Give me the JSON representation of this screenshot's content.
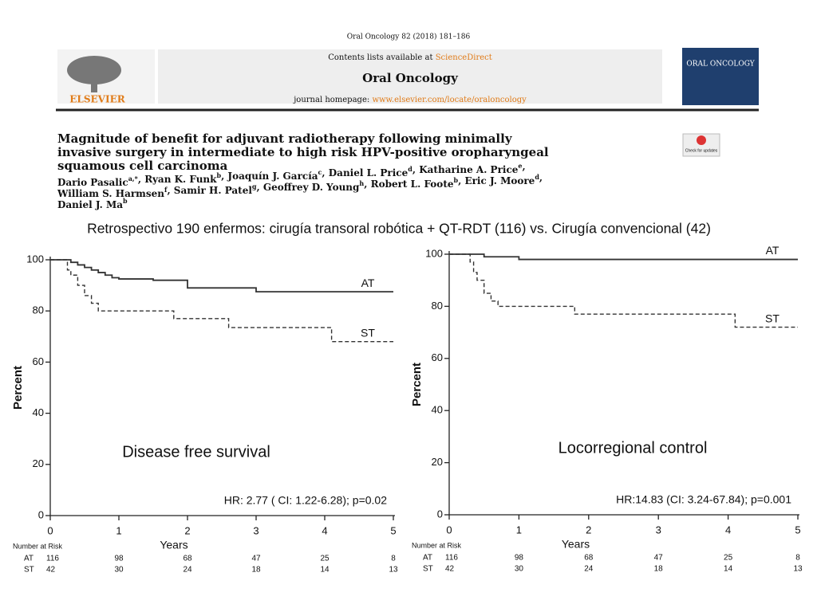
{
  "header": {
    "journal_line": "Oral Oncology 82 (2018) 181–186",
    "contents_prefix": "Contents lists available at",
    "contents_link": "ScienceDirect",
    "journal_name": "Oral Oncology",
    "homepage_prefix": "journal homepage:",
    "homepage_link": "www.elsevier.com/locate/oraloncology",
    "publisher": "ELSEVIER",
    "cover": "ORAL ONCOLOGY",
    "badge": "Check for updates",
    "title_lines": [
      "Magnitude of benefit for adjuvant radiotherapy following minimally",
      "invasive surgery in intermediate to high risk HPV-positive oropharyngeal",
      "squamous cell carcinoma"
    ],
    "author_lines": [
      [
        {
          "name": "Dario Pasalic",
          "sup": "a,*"
        },
        {
          "name": ", Ryan K. Funk",
          "sup": "b"
        },
        {
          "name": ", Joaquín J. García",
          "sup": "c"
        },
        {
          "name": ", Daniel L. Price",
          "sup": "d"
        },
        {
          "name": ", Katharine A. Price",
          "sup": "e"
        },
        {
          "name": ",",
          "sup": ""
        }
      ],
      [
        {
          "name": "William S. Harmsen",
          "sup": "f"
        },
        {
          "name": ", Samir H. Patel",
          "sup": "g"
        },
        {
          "name": ", Geoffrey D. Young",
          "sup": "h"
        },
        {
          "name": ", Robert L. Foote",
          "sup": "b"
        },
        {
          "name": ", Eric J. Moore",
          "sup": "d"
        },
        {
          "name": ",",
          "sup": ""
        }
      ],
      [
        {
          "name": "Daniel J. Ma",
          "sup": "b"
        }
      ]
    ]
  },
  "subtitle": "Retrospectivo 190 enfermos: cirugía transoral robótica + QT-RDT (116) vs. Cirugía convencional (42)",
  "chart_data": [
    {
      "type": "line",
      "annotation": "Disease free survival",
      "hr_text": "HR: 2.77 ( CI: 1.22-6.28); p=0.02",
      "xlabel": "Years",
      "ylabel": "Percent",
      "xlim": [
        0,
        5
      ],
      "ylim": [
        0,
        100
      ],
      "xticks": [
        0,
        1,
        2,
        3,
        4,
        5
      ],
      "yticks": [
        0,
        20,
        40,
        60,
        80,
        100
      ],
      "series": [
        {
          "name": "AT",
          "color": "#333333",
          "dash": false,
          "x": [
            0,
            0.3,
            0.4,
            0.5,
            0.6,
            0.7,
            0.8,
            0.9,
            1.0,
            1.5,
            2.0,
            3.0,
            5.0
          ],
          "values": [
            100,
            99,
            98,
            97,
            96,
            95,
            94,
            93,
            92.5,
            92,
            89,
            87.5,
            87.5
          ]
        },
        {
          "name": "ST",
          "color": "#333333",
          "dash": true,
          "x": [
            0,
            0.25,
            0.3,
            0.4,
            0.5,
            0.6,
            0.7,
            1.8,
            2.6,
            4.1,
            5.0
          ],
          "values": [
            100,
            96,
            94,
            90,
            86,
            83,
            80,
            77,
            73.5,
            68,
            68
          ]
        }
      ],
      "risk_table": {
        "label": "Number at Risk",
        "rows": [
          {
            "name": "AT",
            "values": [
              116,
              98,
              68,
              47,
              25,
              8
            ]
          },
          {
            "name": "ST",
            "values": [
              42,
              30,
              24,
              18,
              14,
              13
            ]
          }
        ]
      }
    },
    {
      "type": "line",
      "annotation": "Locorregional control",
      "hr_text": "HR:14.83 (CI: 3.24-67.84); p=0.001",
      "xlabel": "Years",
      "ylabel": "Percent",
      "xlim": [
        0,
        5
      ],
      "ylim": [
        0,
        100
      ],
      "xticks": [
        0,
        1,
        2,
        3,
        4,
        5
      ],
      "yticks": [
        0,
        20,
        40,
        60,
        80,
        100
      ],
      "series": [
        {
          "name": "AT",
          "color": "#333333",
          "dash": false,
          "x": [
            0,
            0.5,
            1.0,
            5.0
          ],
          "values": [
            100,
            99,
            98,
            98
          ]
        },
        {
          "name": "ST",
          "color": "#333333",
          "dash": true,
          "x": [
            0,
            0.3,
            0.35,
            0.4,
            0.5,
            0.6,
            0.7,
            1.8,
            4.1,
            5.0
          ],
          "values": [
            100,
            97,
            93,
            90,
            85,
            82,
            80,
            77,
            72,
            72
          ]
        }
      ],
      "risk_table": {
        "label": "Number at Risk",
        "rows": [
          {
            "name": "AT",
            "values": [
              116,
              98,
              68,
              47,
              25,
              8
            ]
          },
          {
            "name": "ST",
            "values": [
              42,
              30,
              24,
              18,
              14,
              13
            ]
          }
        ]
      }
    }
  ]
}
